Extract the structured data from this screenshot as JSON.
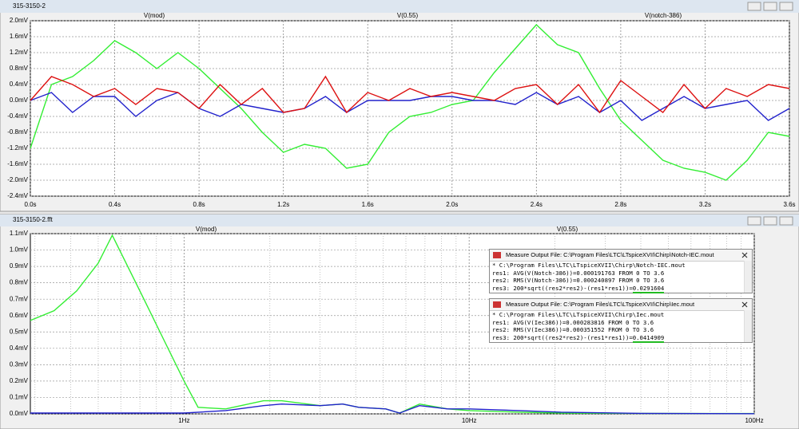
{
  "windows": [
    {
      "title": "315-3150-2"
    },
    {
      "title": "315-3150-2.fft"
    }
  ],
  "chart_data": [
    {
      "type": "line",
      "legend": "top",
      "grid": true,
      "x": [
        0,
        0.1,
        0.2,
        0.3,
        0.4,
        0.5,
        0.6,
        0.7,
        0.8,
        0.9,
        1.0,
        1.1,
        1.2,
        1.3,
        1.4,
        1.5,
        1.6,
        1.7,
        1.8,
        1.9,
        2.0,
        2.1,
        2.2,
        2.3,
        2.4,
        2.5,
        2.6,
        2.7,
        2.8,
        2.9,
        3.0,
        3.1,
        3.2,
        3.3,
        3.4,
        3.5,
        3.6
      ],
      "series": [
        {
          "name": "V(mod)",
          "color": "#33ee33",
          "values": [
            -1.2,
            0.4,
            0.6,
            1.0,
            1.5,
            1.2,
            0.8,
            1.2,
            0.8,
            0.3,
            -0.2,
            -0.8,
            -1.3,
            -1.1,
            -1.2,
            -1.7,
            -1.6,
            -0.8,
            -0.4,
            -0.3,
            -0.1,
            0.0,
            0.7,
            1.3,
            1.9,
            1.4,
            1.2,
            0.3,
            -0.5,
            -1.0,
            -1.5,
            -1.7,
            -1.8,
            -2.0,
            -1.5,
            -0.8,
            -0.9
          ]
        },
        {
          "name": "V(0.55)",
          "color": "#2222cc",
          "values": [
            0,
            0.2,
            -0.3,
            0.1,
            0.1,
            -0.4,
            0.0,
            0.2,
            -0.2,
            -0.4,
            -0.1,
            -0.2,
            -0.3,
            -0.2,
            0.1,
            -0.3,
            0.0,
            0.0,
            0.0,
            0.1,
            0.1,
            0.0,
            0.0,
            -0.1,
            0.2,
            -0.1,
            0.1,
            -0.3,
            0.0,
            -0.5,
            -0.2,
            0.1,
            -0.2,
            -0.1,
            0.0,
            -0.5,
            -0.2
          ]
        },
        {
          "name": "V(notch-386)",
          "color": "#dd1111",
          "values": [
            0,
            0.6,
            0.4,
            0.1,
            0.3,
            -0.1,
            0.3,
            0.2,
            -0.2,
            0.4,
            -0.1,
            0.3,
            -0.3,
            -0.2,
            0.6,
            -0.3,
            0.2,
            0.0,
            0.3,
            0.1,
            0.2,
            0.1,
            0.0,
            0.3,
            0.4,
            -0.1,
            0.4,
            -0.3,
            0.5,
            0.1,
            -0.3,
            0.4,
            -0.2,
            0.3,
            0.1,
            0.4,
            0.3
          ]
        }
      ],
      "xlim": [
        0,
        3.6
      ],
      "xticks": [
        {
          "value": 0,
          "label": "0.0s"
        },
        {
          "value": 0.4,
          "label": "0.4s"
        },
        {
          "value": 0.8,
          "label": "0.8s"
        },
        {
          "value": 1.2,
          "label": "1.2s"
        },
        {
          "value": 1.6,
          "label": "1.6s"
        },
        {
          "value": 2.0,
          "label": "2.0s"
        },
        {
          "value": 2.4,
          "label": "2.4s"
        },
        {
          "value": 2.8,
          "label": "2.8s"
        },
        {
          "value": 3.2,
          "label": "3.2s"
        },
        {
          "value": 3.6,
          "label": "3.6s"
        }
      ],
      "ylim": [
        -2.4,
        2.0
      ],
      "yticks": [
        {
          "value": 2.0,
          "label": "2.0mV"
        },
        {
          "value": 1.6,
          "label": "1.6mV"
        },
        {
          "value": 1.2,
          "label": "1.2mV"
        },
        {
          "value": 0.8,
          "label": "0.8mV"
        },
        {
          "value": 0.4,
          "label": "0.4mV"
        },
        {
          "value": 0.0,
          "label": "0.0mV"
        },
        {
          "value": -0.4,
          "label": "-0.4mV"
        },
        {
          "value": -0.8,
          "label": "-0.8mV"
        },
        {
          "value": -1.2,
          "label": "-1.2mV"
        },
        {
          "value": -1.6,
          "label": "-1.6mV"
        },
        {
          "value": -2.0,
          "label": "-2.0mV"
        },
        {
          "value": -2.4,
          "label": "-2.4mV"
        }
      ]
    },
    {
      "type": "line",
      "legend": "top",
      "grid": true,
      "xscale": "log",
      "series": [
        {
          "name": "V(mod)",
          "color": "#33ee33",
          "x": [
            0.289,
            0.35,
            0.42,
            0.5,
            0.56,
            0.7,
            0.85,
            1.0,
            1.12,
            1.4,
            1.9,
            2.2,
            3.0,
            3.6,
            4.1,
            5.1,
            5.7,
            6.7,
            8.4,
            10,
            15,
            21,
            40,
            100
          ],
          "values": [
            0.57,
            0.63,
            0.75,
            0.92,
            1.09,
            0.75,
            0.45,
            0.2,
            0.04,
            0.03,
            0.08,
            0.08,
            0.05,
            0.06,
            0.04,
            0.03,
            0.005,
            0.06,
            0.03,
            0.02,
            0.01,
            0.005,
            0.003,
            0.002
          ]
        },
        {
          "name": "V(0.55)",
          "color": "#2222cc",
          "x": [
            0.289,
            1.0,
            1.4,
            1.9,
            2.2,
            3.0,
            3.6,
            4.1,
            5.1,
            5.7,
            6.7,
            8.4,
            10,
            15,
            21,
            40,
            100
          ],
          "values": [
            0.005,
            0.005,
            0.02,
            0.05,
            0.06,
            0.05,
            0.06,
            0.04,
            0.03,
            0.005,
            0.05,
            0.03,
            0.03,
            0.02,
            0.01,
            0.003,
            0.001
          ]
        }
      ],
      "xlim": [
        0.289,
        100
      ],
      "xticks": [
        {
          "value": 1,
          "label": "1Hz"
        },
        {
          "value": 10,
          "label": "10Hz"
        },
        {
          "value": 100,
          "label": "100Hz"
        }
      ],
      "xminorticks": [
        0.3,
        0.4,
        0.5,
        0.6,
        0.7,
        0.8,
        0.9,
        2,
        3,
        4,
        5,
        6,
        7,
        8,
        9,
        20,
        30,
        40,
        50,
        60,
        70,
        80,
        90
      ],
      "ylim": [
        0,
        1.1
      ],
      "yticks": [
        {
          "value": 1.1,
          "label": "1.1mV"
        },
        {
          "value": 1.0,
          "label": "1.0mV"
        },
        {
          "value": 0.9,
          "label": "0.9mV"
        },
        {
          "value": 0.8,
          "label": "0.8mV"
        },
        {
          "value": 0.7,
          "label": "0.7mV"
        },
        {
          "value": 0.6,
          "label": "0.6mV"
        },
        {
          "value": 0.5,
          "label": "0.5mV"
        },
        {
          "value": 0.4,
          "label": "0.4mV"
        },
        {
          "value": 0.3,
          "label": "0.3mV"
        },
        {
          "value": 0.2,
          "label": "0.2mV"
        },
        {
          "value": 0.1,
          "label": "0.1mV"
        },
        {
          "value": 0.0,
          "label": "0.0mV"
        }
      ]
    }
  ],
  "measure_windows": [
    {
      "title": "Measure Output File: C:\\Program Files\\LTC\\LTspiceXVII\\Chirp\\Notch-IEC.mout",
      "lines": [
        "* C:\\Program Files\\LTC\\LTspiceXVII\\Chirp\\Notch-IEC.mout",
        "res1: AVG(V(Notch-386))=0.000191763 FROM 0 TO 3.6",
        "res2: RMS(V(Notch-386))=0.000240897 FROM 0 TO 3.6"
      ],
      "result_prefix": "res3: 200*sqrt((res2*res2)-(res1*res1))=",
      "result_value": "0.0291604"
    },
    {
      "title": "Measure Output File: C:\\Program Files\\LTC\\LTspiceXVII\\Chirp\\Iec.mout",
      "lines": [
        "* C:\\Program Files\\LTC\\LTspiceXVII\\Chirp\\Iec.mout",
        "res1: AVG(V(Iec386))=0.000283816 FROM 0 TO 3.6",
        "res2: RMS(V(Iec386))=0.000351552 FROM 0 TO 3.6"
      ],
      "result_prefix": "res3: 200*sqrt((res2*res2)-(res1*res1))=",
      "result_value": "0.0414909"
    }
  ]
}
